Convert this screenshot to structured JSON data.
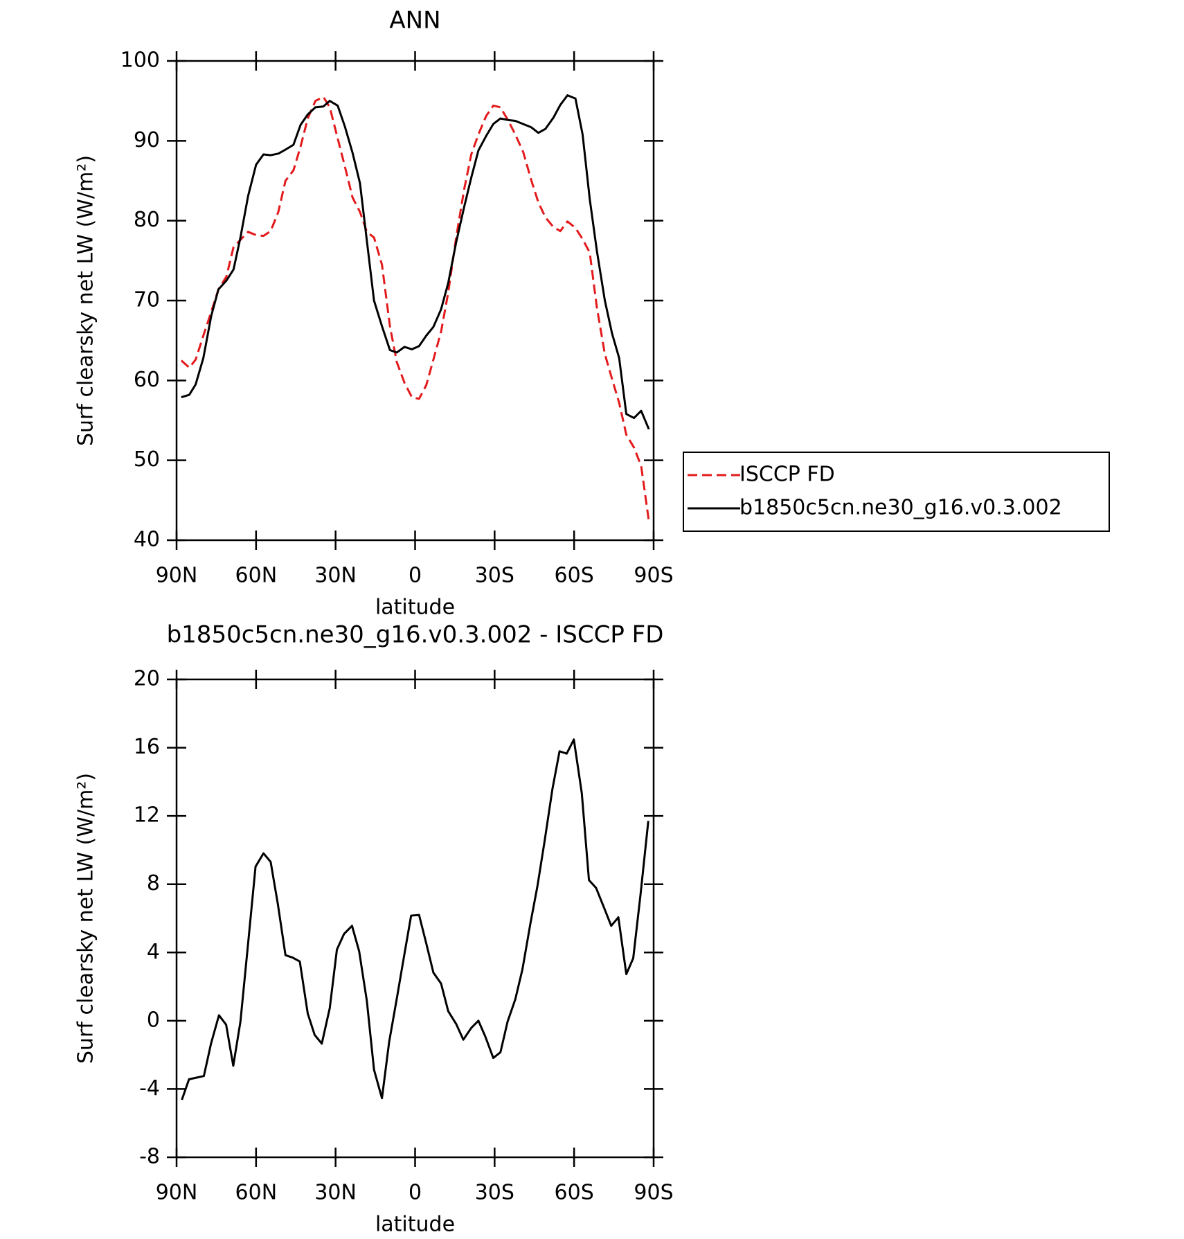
{
  "chart_data": [
    {
      "type": "line",
      "title": "ANN",
      "xlabel": "latitude",
      "ylabel": "Surf clearsky net LW (W/m²)",
      "xlim": [
        90,
        -90
      ],
      "xticks": [
        {
          "value": 90,
          "label": "90N"
        },
        {
          "value": 60,
          "label": "60N"
        },
        {
          "value": 30,
          "label": "30N"
        },
        0,
        {
          "value": -30,
          "label": "30S"
        },
        {
          "value": -60,
          "label": "60S"
        },
        {
          "value": -90,
          "label": "90S"
        }
      ],
      "ylim": [
        40,
        100
      ],
      "yticks": [
        40,
        50,
        60,
        70,
        80,
        90,
        100
      ],
      "grid": false,
      "legend": "right",
      "x": [
        88.2,
        85.2,
        82.8,
        79.9,
        76.9,
        74.2,
        71.2,
        68.5,
        65.9,
        63.0,
        60.0,
        57.2,
        54.5,
        51.6,
        48.9,
        45.9,
        43.2,
        40.5,
        37.6,
        34.6,
        32.2,
        29.2,
        26.5,
        23.6,
        20.8,
        18.2,
        15.5,
        12.5,
        9.5,
        6.9,
        4.0,
        1.2,
        -1.5,
        -4.2,
        -6.9,
        -9.8,
        -12.5,
        -15.5,
        -18.5,
        -21.2,
        -23.9,
        -26.8,
        -29.5,
        -32.2,
        -35.2,
        -37.8,
        -40.8,
        -43.8,
        -46.5,
        -49.2,
        -52.2,
        -54.8,
        -57.5,
        -60.5,
        -63.2,
        -65.9,
        -68.6,
        -71.6,
        -74.3,
        -77.0,
        -79.7,
        -82.6,
        -85.3,
        -88.2
      ],
      "series": [
        {
          "name": "ISCCP FD",
          "color": "#e31a1c",
          "dash": "dashed",
          "values": [
            62.5,
            61.6,
            62.6,
            65.6,
            68.6,
            71.4,
            73.0,
            76.7,
            77.6,
            78.6,
            78.2,
            78.1,
            78.7,
            81.1,
            85.0,
            86.3,
            89.3,
            92.8,
            95.0,
            95.5,
            94.2,
            90.3,
            86.8,
            82.9,
            81.1,
            78.6,
            77.9,
            74.5,
            66.8,
            62.3,
            59.7,
            57.9,
            57.7,
            59.4,
            62.6,
            66.1,
            71.0,
            77.9,
            83.9,
            88.3,
            90.8,
            93.1,
            94.4,
            94.2,
            92.5,
            90.8,
            88.6,
            85.1,
            82.3,
            80.4,
            79.2,
            78.7,
            79.9,
            79.1,
            77.7,
            76.0,
            69.1,
            63.3,
            60.2,
            57.2,
            53.2,
            51.6,
            49.3,
            42.4
          ]
        },
        {
          "name": "b1850c5cn.ne30_g16.v0.3.002",
          "color": "#000000",
          "dash": "solid",
          "values": [
            57.9,
            58.2,
            59.5,
            62.8,
            68.1,
            71.4,
            72.5,
            73.9,
            77.9,
            83.1,
            87.0,
            88.3,
            88.2,
            88.4,
            88.9,
            89.5,
            92.0,
            93.3,
            94.2,
            94.3,
            95.0,
            94.4,
            91.8,
            88.5,
            84.7,
            77.5,
            70.0,
            66.8,
            63.8,
            63.5,
            64.2,
            63.9,
            64.3,
            65.6,
            66.7,
            68.9,
            72.2,
            77.3,
            81.7,
            85.4,
            88.8,
            90.6,
            92.1,
            92.8,
            92.6,
            92.5,
            92.1,
            91.7,
            91.0,
            91.5,
            92.9,
            94.5,
            95.7,
            95.3,
            90.8,
            82.7,
            76.2,
            70.0,
            65.9,
            62.8,
            55.8,
            55.3,
            56.2,
            53.9
          ]
        }
      ]
    },
    {
      "type": "line",
      "title": "b1850c5cn.ne30_g16.v0.3.002 - ISCCP FD",
      "xlabel": "latitude",
      "ylabel": "Surf clearsky net LW (W/m²)",
      "xlim": [
        90,
        -90
      ],
      "xticks": [
        {
          "value": 90,
          "label": "90N"
        },
        {
          "value": 60,
          "label": "60N"
        },
        {
          "value": 30,
          "label": "30N"
        },
        0,
        {
          "value": -30,
          "label": "30S"
        },
        {
          "value": -60,
          "label": "60S"
        },
        {
          "value": -90,
          "label": "90S"
        }
      ],
      "ylim": [
        -8,
        20
      ],
      "yticks": [
        -8,
        -4,
        0,
        4,
        8,
        12,
        16,
        20
      ],
      "grid": false,
      "x": [
        88.0,
        85.3,
        79.7,
        77.0,
        74.0,
        71.3,
        68.6,
        65.9,
        63.0,
        60.2,
        57.2,
        54.5,
        51.8,
        48.9,
        46.2,
        43.5,
        40.5,
        37.9,
        35.2,
        32.2,
        29.5,
        26.8,
        23.8,
        21.1,
        18.2,
        15.5,
        12.5,
        9.8,
        6.9,
        4.2,
        1.5,
        -1.5,
        -4.2,
        -6.9,
        -9.8,
        -12.5,
        -15.5,
        -18.2,
        -21.2,
        -23.9,
        -26.5,
        -29.5,
        -32.2,
        -34.9,
        -37.8,
        -40.5,
        -43.5,
        -46.2,
        -48.9,
        -51.8,
        -54.5,
        -57.2,
        -59.9,
        -62.9,
        -65.6,
        -68.3,
        -71.3,
        -74.0,
        -76.7,
        -79.7,
        -82.3,
        -85.0,
        -88.0
      ],
      "series": [
        {
          "color": "#000000",
          "dash": "solid",
          "values": [
            -4.63,
            -3.43,
            -3.24,
            -1.34,
            0.32,
            -0.23,
            -2.64,
            -0.05,
            4.54,
            9.03,
            9.81,
            9.31,
            6.85,
            3.84,
            3.7,
            3.47,
            0.42,
            -0.83,
            -1.34,
            0.74,
            4.17,
            5.09,
            5.56,
            4.07,
            1.16,
            -2.87,
            -4.54,
            -1.25,
            1.3,
            3.75,
            6.16,
            6.2,
            4.54,
            2.82,
            2.18,
            0.56,
            -0.19,
            -1.11,
            -0.42,
            0,
            -0.93,
            -2.18,
            -1.85,
            -0.05,
            1.25,
            3.01,
            5.69,
            7.92,
            10.56,
            13.56,
            15.79,
            15.65,
            16.48,
            13.33,
            8.24,
            7.78,
            6.62,
            5.56,
            6.06,
            2.73,
            3.66,
            7.31,
            11.71
          ]
        }
      ]
    }
  ]
}
